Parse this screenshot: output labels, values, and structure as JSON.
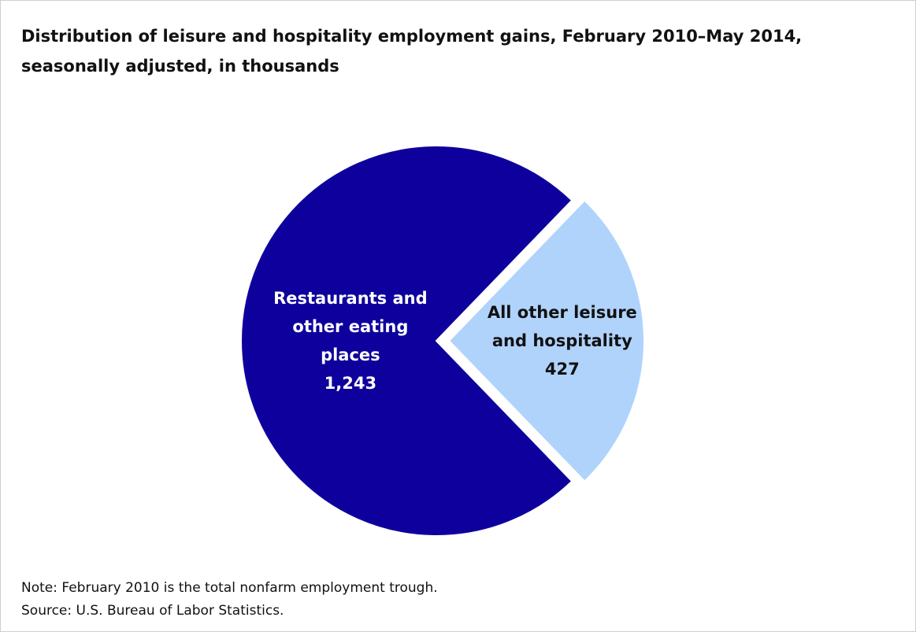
{
  "chart_data": {
    "type": "pie",
    "title": "Distribution of leisure and hospitality employment gains, February 2010–May 2014, seasonally adjusted, in thousands",
    "categories": [
      "Restaurants and other eating places",
      "All other leisure and hospitality"
    ],
    "values": [
      1243,
      427
    ],
    "value_labels": [
      "1,243",
      "427"
    ],
    "colors": [
      "#0e009c",
      "#b0d3fc"
    ],
    "label_colors": [
      "#ffffff",
      "#111111"
    ],
    "note": "Note:  February 2010 is the total nonfarm employment  trough.",
    "source": "Source: U.S. Bureau of Labor Statistics."
  }
}
